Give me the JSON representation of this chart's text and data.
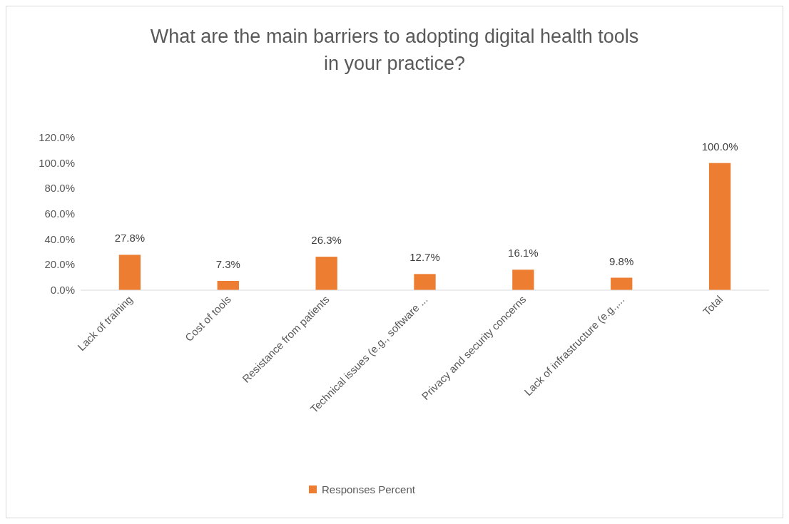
{
  "chart_data": {
    "type": "bar",
    "title": "What are the main barriers to adopting digital health tools in your practice?",
    "categories": [
      "Lack of training",
      "Cost of tools",
      "Resistance from patients",
      "Technical issues (e.g., software ...",
      "Privacy and security concerns",
      "Lack of infrastructure (e.g.,...",
      "Total"
    ],
    "series": [
      {
        "name": "Responses Percent",
        "color": "#ed7d31",
        "values": [
          27.8,
          7.3,
          26.3,
          12.7,
          16.1,
          9.8,
          100.0
        ],
        "value_labels": [
          "27.8%",
          "7.3%",
          "26.3%",
          "12.7%",
          "16.1%",
          "9.8%",
          "100.0%"
        ]
      }
    ],
    "ylim": [
      0,
      120
    ],
    "yticks": [
      {
        "value": 0,
        "label": "0.0%"
      },
      {
        "value": 20,
        "label": "20.0%"
      },
      {
        "value": 40,
        "label": "40.0%"
      },
      {
        "value": 60,
        "label": "60.0%"
      },
      {
        "value": 80,
        "label": "80.0%"
      },
      {
        "value": 100,
        "label": "100.0%"
      },
      {
        "value": 120,
        "label": "120.0%"
      }
    ],
    "grid": false,
    "legend": "bottom"
  }
}
